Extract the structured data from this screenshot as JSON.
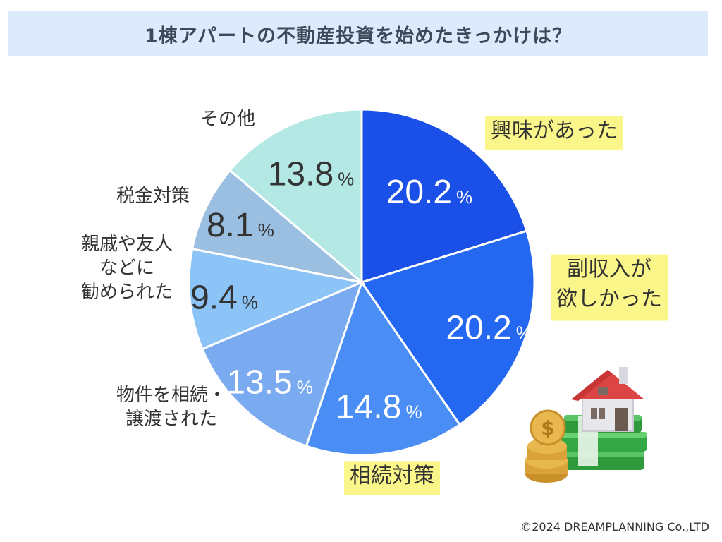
{
  "title": "1棟アパートの不動産投資を始めたきっかけは？",
  "copyright": "©2024 DREAMPLANNING Co.,LTD",
  "chart_data": {
    "type": "pie",
    "title": "1棟アパートの不動産投資を始めたきっかけは？",
    "unit": "%",
    "start_angle_deg": 0,
    "direction": "clockwise",
    "slices": [
      {
        "label": "興味があった",
        "label_lines": [
          "興味があった"
        ],
        "value": 20.2,
        "value_text": "20.2",
        "color": "#1a4fe8",
        "text_color": "#ffffff",
        "highlight": true
      },
      {
        "label": "副収入が欲しかった",
        "label_lines": [
          "副収入が",
          "欲しかった"
        ],
        "value": 20.2,
        "value_text": "20.2",
        "color": "#2468f2",
        "text_color": "#ffffff",
        "highlight": true
      },
      {
        "label": "相続対策",
        "label_lines": [
          "相続対策"
        ],
        "value": 14.8,
        "value_text": "14.8",
        "color": "#4a8ef5",
        "text_color": "#ffffff",
        "highlight": true
      },
      {
        "label": "物件を相続・譲渡された",
        "label_lines": [
          "物件を相続・",
          "譲渡された"
        ],
        "value": 13.5,
        "value_text": "13.5",
        "color": "#7aaaf0",
        "text_color": "#ffffff",
        "highlight": false
      },
      {
        "label": "親戚や友人などに勧められた",
        "label_lines": [
          "親戚や友人",
          "などに",
          "勧められた"
        ],
        "value": 9.4,
        "value_text": "9.4",
        "color": "#8cc4f7",
        "text_color": "#333333",
        "highlight": false
      },
      {
        "label": "税金対策",
        "label_lines": [
          "税金対策"
        ],
        "value": 8.1,
        "value_text": "8.1",
        "color": "#9bbfe0",
        "text_color": "#333333",
        "highlight": false
      },
      {
        "label": "その他",
        "label_lines": [
          "その他"
        ],
        "value": 13.8,
        "value_text": "13.8",
        "color": "#b4e8e5",
        "text_color": "#333333",
        "highlight": false
      }
    ]
  },
  "colors": {
    "title_bg": "#dceafb",
    "label_highlight": "#fbf68a",
    "slice_stroke": "#ffffff"
  }
}
